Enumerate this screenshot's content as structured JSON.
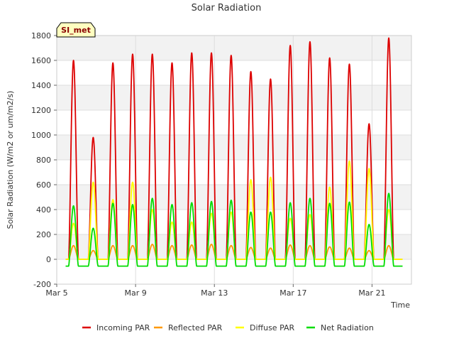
{
  "chart_data": {
    "type": "line",
    "title": "Solar Radiation",
    "xlabel": "Time",
    "ylabel": "Solar Radiation (W/m2 or um/m2/s)",
    "badge": "SI_met",
    "x_range_days": [
      0,
      18
    ],
    "x_start_label": "Mar 5",
    "xticks": [
      {
        "day": 0,
        "label": "Mar 5"
      },
      {
        "day": 4,
        "label": "Mar 9"
      },
      {
        "day": 8,
        "label": "Mar 13"
      },
      {
        "day": 12,
        "label": "Mar 17"
      },
      {
        "day": 16,
        "label": "Mar 21"
      }
    ],
    "ylim": [
      -200,
      1800
    ],
    "yticks": [
      -200,
      0,
      200,
      400,
      600,
      800,
      1000,
      1200,
      1400,
      1600,
      1800
    ],
    "grid": true,
    "legend_position": "bottom",
    "series": [
      {
        "name": "Incoming PAR",
        "color": "#dd0000",
        "night": 0,
        "daily_peaks": [
          1600,
          980,
          1580,
          1650,
          1650,
          1580,
          1660,
          1660,
          1640,
          1510,
          1450,
          1720,
          1750,
          1620,
          1570,
          1090,
          1780
        ]
      },
      {
        "name": "Reflected PAR",
        "color": "#ff9900",
        "night": 0,
        "daily_peaks": [
          110,
          70,
          110,
          110,
          120,
          110,
          115,
          120,
          110,
          95,
          90,
          115,
          110,
          100,
          90,
          70,
          110
        ]
      },
      {
        "name": "Diffuse PAR",
        "color": "#ffff00",
        "night": 0,
        "daily_peaks": [
          290,
          620,
          480,
          620,
          400,
          300,
          300,
          370,
          380,
          640,
          660,
          330,
          360,
          580,
          790,
          730,
          400
        ]
      },
      {
        "name": "Net Radiation",
        "color": "#00dd00",
        "night": -55,
        "daily_peaks": [
          430,
          250,
          450,
          440,
          490,
          440,
          455,
          465,
          475,
          380,
          380,
          455,
          490,
          450,
          460,
          280,
          530
        ]
      }
    ]
  }
}
